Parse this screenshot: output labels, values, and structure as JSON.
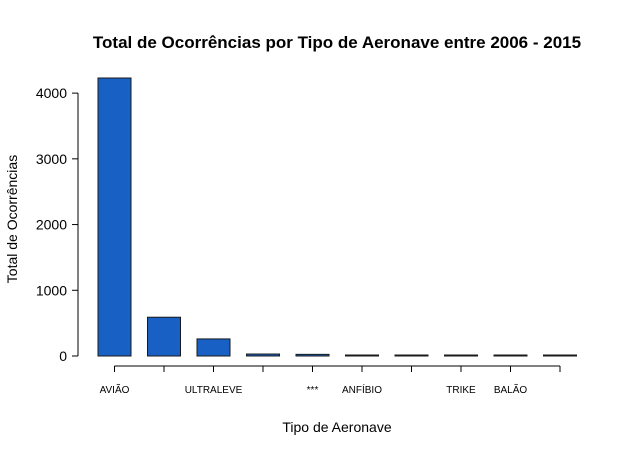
{
  "chart_data": {
    "type": "bar",
    "title": "Total de Ocorrências por Tipo de Aeronave entre  2006 - 2015",
    "xlabel": "Tipo de Aeronave",
    "ylabel": "Total de Ocorrências",
    "categories": [
      "AVIÃO",
      "",
      "ULTRALEVE",
      "",
      "***",
      "ANFÍBIO",
      "",
      "TRIKE",
      "BALÃO",
      ""
    ],
    "values": [
      4230,
      590,
      260,
      30,
      25,
      15,
      8,
      5,
      3,
      2
    ],
    "ylim": [
      0,
      4230
    ],
    "yticks": [
      0,
      1000,
      2000,
      3000,
      4000
    ],
    "ytick_labels": [
      "0",
      "1000",
      "2000",
      "3000",
      "4000"
    ],
    "grid": false,
    "legend": "none",
    "bar_color": "#1860c4"
  }
}
